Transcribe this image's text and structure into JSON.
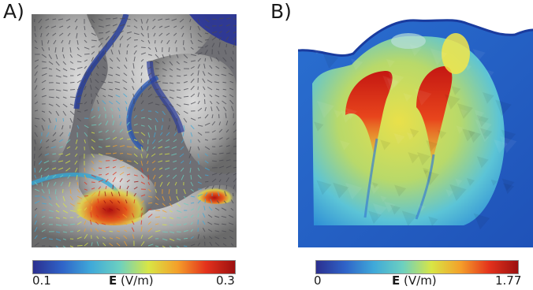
{
  "panels": [
    {
      "letter": "A)",
      "colorbar": {
        "min": "0.1",
        "max": "0.3",
        "symbol": "E",
        "unit": "(V/m)"
      },
      "colormap": [
        "#2b2f8f",
        "#2f63c8",
        "#3fa9d9",
        "#6cd0c0",
        "#d8e645",
        "#f4a02a",
        "#e4321c",
        "#9c1010"
      ]
    },
    {
      "letter": "B)",
      "colorbar": {
        "min": "0",
        "max": "1.77",
        "symbol": "E",
        "unit": "(V/m)"
      },
      "colormap": [
        "#2b2f8f",
        "#2f63c8",
        "#3fa9d9",
        "#6cd0c0",
        "#d8e645",
        "#f4a02a",
        "#e4321c",
        "#9c1010"
      ]
    }
  ]
}
